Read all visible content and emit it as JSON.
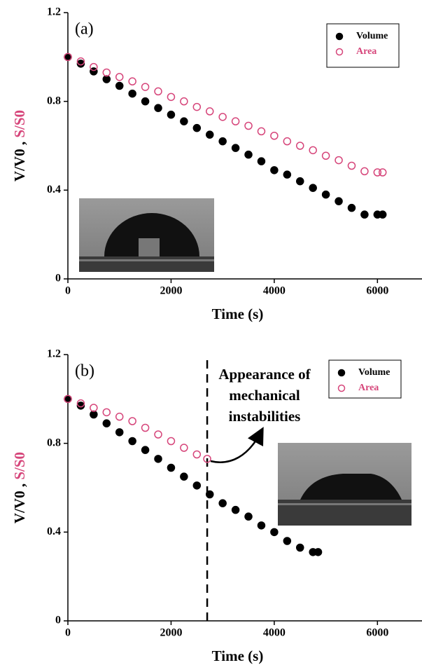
{
  "chart_data": [
    {
      "type": "scatter",
      "panel_label": "(a)",
      "xlabel": "Time (s)",
      "ylabel": "V/V0 ,",
      "ylabel2": "S/S0",
      "ylabel2_color": "#d6457a",
      "xlim": [
        0,
        6850
      ],
      "ylim": [
        0,
        1.2
      ],
      "xticks": [
        0,
        2000,
        4000,
        6000
      ],
      "yticks": [
        0,
        0.4,
        0.8,
        1.2
      ],
      "series": [
        {
          "name": "Volume",
          "color": "#000000",
          "filled": true,
          "x": [
            0,
            250,
            500,
            750,
            1000,
            1250,
            1500,
            1750,
            2000,
            2250,
            2500,
            2750,
            3000,
            3250,
            3500,
            3750,
            4000,
            4250,
            4500,
            4750,
            5000,
            5250,
            5500,
            5750,
            6000,
            6100
          ],
          "values": [
            1.0,
            0.97,
            0.935,
            0.9,
            0.87,
            0.835,
            0.8,
            0.77,
            0.74,
            0.71,
            0.68,
            0.65,
            0.62,
            0.59,
            0.56,
            0.53,
            0.49,
            0.47,
            0.44,
            0.41,
            0.38,
            0.35,
            0.32,
            0.29,
            0.29,
            0.29
          ]
        },
        {
          "name": "Area",
          "color": "#d6457a",
          "filled": false,
          "x": [
            0,
            250,
            500,
            750,
            1000,
            1250,
            1500,
            1750,
            2000,
            2250,
            2500,
            2750,
            3000,
            3250,
            3500,
            3750,
            4000,
            4250,
            4500,
            4750,
            5000,
            5250,
            5500,
            5750,
            6000,
            6100
          ],
          "values": [
            1.0,
            0.98,
            0.955,
            0.93,
            0.91,
            0.89,
            0.865,
            0.845,
            0.82,
            0.8,
            0.775,
            0.755,
            0.73,
            0.71,
            0.69,
            0.665,
            0.645,
            0.62,
            0.6,
            0.58,
            0.555,
            0.535,
            0.51,
            0.485,
            0.48,
            0.48
          ]
        }
      ]
    },
    {
      "type": "scatter",
      "panel_label": "(b)",
      "xlabel": "Time (s)",
      "ylabel": "V/V0 ,",
      "ylabel2": "S/S0",
      "ylabel2_color": "#d6457a",
      "xlim": [
        0,
        6850
      ],
      "ylim": [
        0,
        1.2
      ],
      "xticks": [
        0,
        2000,
        4000,
        6000
      ],
      "yticks": [
        0,
        0.4,
        0.8,
        1.2
      ],
      "vline": 2700,
      "annotation": [
        "Appearance of",
        "mechanical",
        "instabilities"
      ],
      "series": [
        {
          "name": "Volume",
          "color": "#000000",
          "filled": true,
          "x": [
            0,
            250,
            500,
            750,
            1000,
            1250,
            1500,
            1750,
            2000,
            2250,
            2500,
            2750,
            3000,
            3250,
            3500,
            3750,
            4000,
            4250,
            4500,
            4750,
            4850
          ],
          "values": [
            1.0,
            0.97,
            0.93,
            0.89,
            0.85,
            0.81,
            0.77,
            0.73,
            0.69,
            0.65,
            0.61,
            0.57,
            0.53,
            0.5,
            0.47,
            0.43,
            0.4,
            0.36,
            0.33,
            0.31,
            0.31
          ]
        },
        {
          "name": "Area",
          "color": "#d6457a",
          "filled": false,
          "x": [
            0,
            250,
            500,
            750,
            1000,
            1250,
            1500,
            1750,
            2000,
            2250,
            2500,
            2700
          ],
          "values": [
            1.0,
            0.98,
            0.96,
            0.94,
            0.92,
            0.9,
            0.87,
            0.84,
            0.81,
            0.78,
            0.75,
            0.73
          ]
        }
      ]
    }
  ]
}
